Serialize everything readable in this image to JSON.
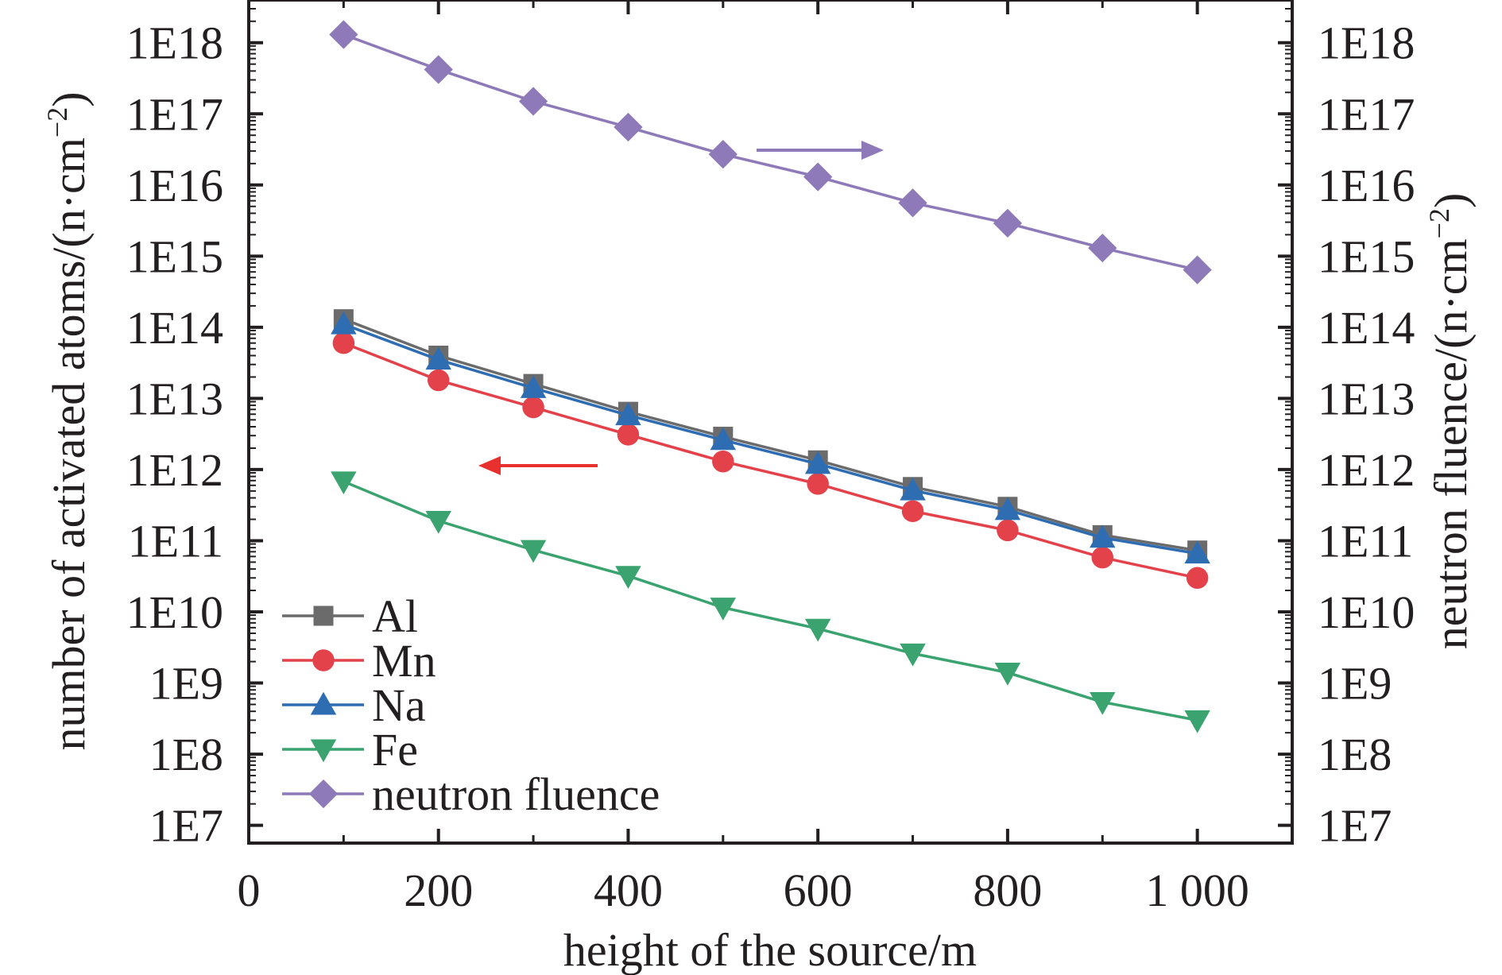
{
  "chart_data": {
    "type": "line",
    "xlabel": "height of the source/m",
    "ylabel_left": "number of activated atoms/(n·cm",
    "ylabel_right": "neutron fluence/(n·cm",
    "ylabel_exponent": "−2",
    "ylabel_close": ")",
    "xlim": [
      0,
      1100
    ],
    "ylim_log10": [
      6.75,
      18.6
    ],
    "x_ticks": [
      0,
      200,
      400,
      600,
      800,
      1000
    ],
    "x_tick_labels": [
      "0",
      "200",
      "400",
      "600",
      "800",
      "1 000"
    ],
    "y_ticks_log10": [
      7,
      8,
      9,
      10,
      11,
      12,
      13,
      14,
      15,
      16,
      17,
      18
    ],
    "y_tick_labels": [
      "1E7",
      "1E8",
      "1E9",
      "1E10",
      "1E11",
      "1E12",
      "1E13",
      "1E14",
      "1E15",
      "1E16",
      "1E17",
      "1E18"
    ],
    "x": [
      100,
      200,
      300,
      400,
      500,
      600,
      700,
      800,
      900,
      1000
    ],
    "series": [
      {
        "name": "Al",
        "axis": "left",
        "color": "#6b6b6b",
        "marker": "square",
        "values": [
          130000000000000.0,
          40000000000000.0,
          16000000000000.0,
          6500000000000.0,
          2900000000000.0,
          1350000000000.0,
          570000000000.0,
          300000000000.0,
          120000000000.0,
          73000000000.0
        ]
      },
      {
        "name": "Mn",
        "axis": "left",
        "color": "#e3424b",
        "marker": "circle",
        "values": [
          60000000000000.0,
          18000000000000.0,
          7500000000000.0,
          3100000000000.0,
          1300000000000.0,
          630000000000.0,
          260000000000.0,
          140000000000.0,
          58000000000.0,
          30000000000.0
        ]
      },
      {
        "name": "Na",
        "axis": "left",
        "color": "#2f6db3",
        "marker": "triangle-up",
        "values": [
          110000000000000.0,
          35000000000000.0,
          14000000000000.0,
          5800000000000.0,
          2600000000000.0,
          1200000000000.0,
          510000000000.0,
          270000000000.0,
          110000000000.0,
          66000000000.0
        ]
      },
      {
        "name": "Fe",
        "axis": "left",
        "color": "#3aa36f",
        "marker": "triangle-down",
        "values": [
          680000000000.0,
          190000000000.0,
          74000000000.0,
          32000000000.0,
          11500000000.0,
          5800000000.0,
          2600000000.0,
          1400000000.0,
          540000000.0,
          300000000.0
        ]
      },
      {
        "name": "neutron fluence",
        "axis": "right",
        "color": "#8e79b9",
        "marker": "diamond",
        "values": [
          1.3e+18,
          4.2e+17,
          1.5e+17,
          6.5e+16,
          2.7e+16,
          1.3e+16,
          5600000000000000.0,
          2900000000000000.0,
          1300000000000000.0,
          640000000000000.0
        ]
      }
    ],
    "annotations": [
      {
        "type": "arrow",
        "direction": "right",
        "color": "#8e79b9",
        "meaning": "neutron fluence uses right axis"
      },
      {
        "type": "arrow",
        "direction": "left",
        "color": "#e8302e",
        "meaning": "elements use left axis"
      }
    ],
    "legend_position": "bottom-left"
  }
}
